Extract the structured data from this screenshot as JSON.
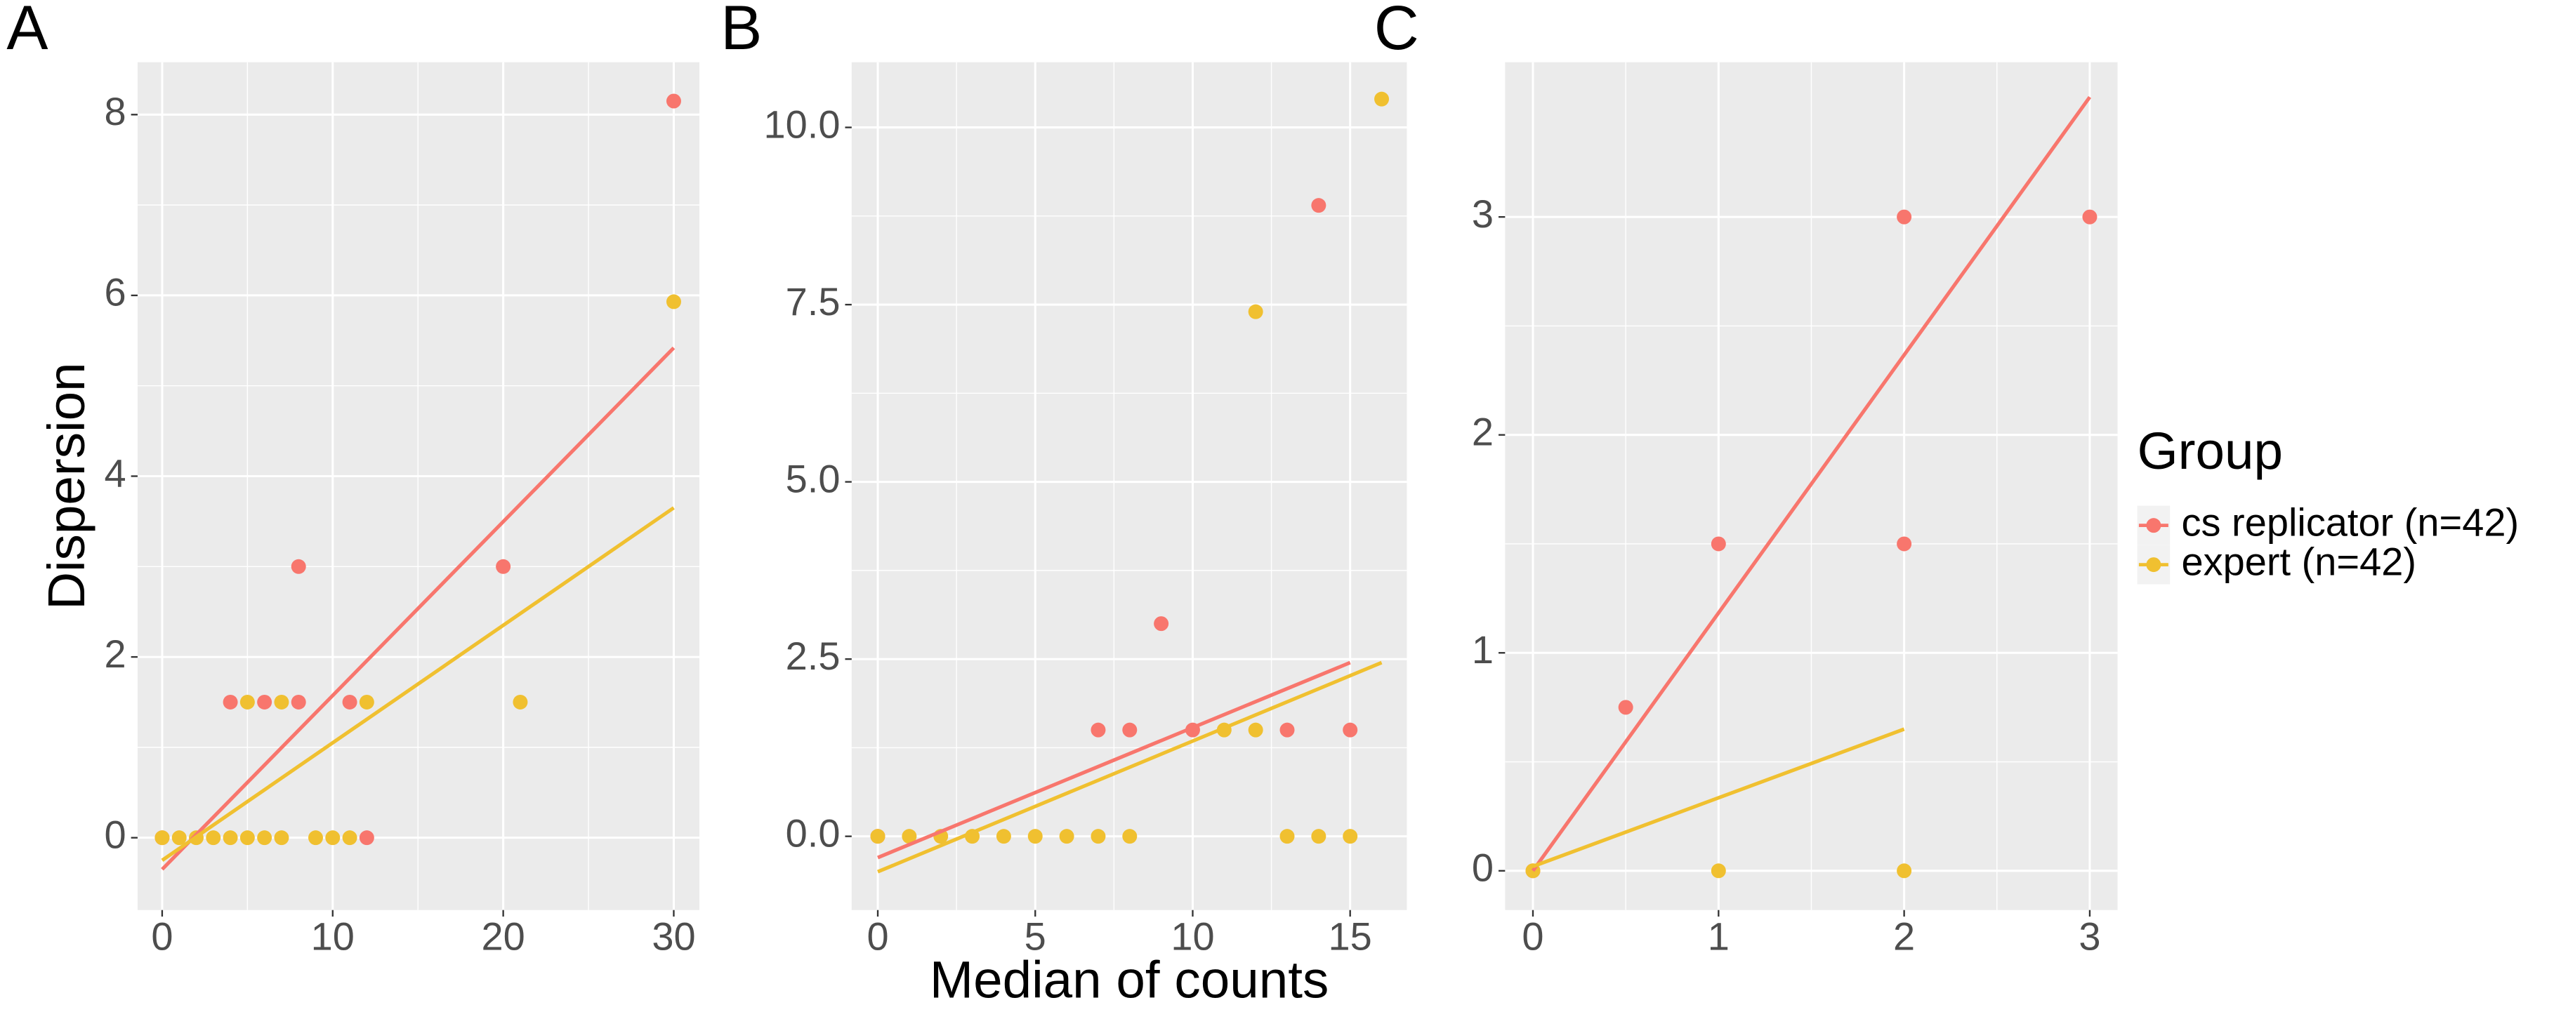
{
  "chart_data": [
    {
      "type": "scatter",
      "tag": "A",
      "ylabel": "Dispersion",
      "legend_title": "Group",
      "xlim": [
        -1.44,
        31.5
      ],
      "ylim": [
        -0.8,
        8.58
      ],
      "xticks": [
        0,
        10,
        20,
        30
      ],
      "yticks": [
        0,
        2,
        4,
        6,
        8
      ],
      "grid": true,
      "series": [
        {
          "name": "cs replicator (n=42)",
          "color": "#F8766D",
          "x": [
            0,
            4,
            6,
            8,
            8,
            11,
            12,
            20,
            30
          ],
          "values": [
            0,
            1.5,
            1.5,
            1.5,
            3,
            1.5,
            0,
            3,
            8.15
          ],
          "fit_x": [
            0,
            30
          ],
          "fit_y": [
            -0.35,
            5.42
          ]
        },
        {
          "name": "expert (n=42)",
          "color": "#F0C030",
          "x": [
            0,
            1,
            2,
            3,
            4,
            5,
            6,
            7,
            5,
            7,
            9,
            10,
            11,
            12,
            21,
            30
          ],
          "values": [
            0,
            0,
            0,
            0,
            0,
            0,
            0,
            0,
            1.5,
            1.5,
            0,
            0,
            0,
            1.5,
            1.5,
            5.93
          ],
          "fit_x": [
            0,
            30
          ],
          "fit_y": [
            -0.25,
            3.65
          ]
        }
      ]
    },
    {
      "type": "scatter",
      "tag": "B",
      "xlabel": "Median of counts",
      "xlim": [
        -0.83,
        16.8
      ],
      "ylim": [
        -1.04,
        10.92
      ],
      "xticks": [
        0,
        5,
        10,
        15
      ],
      "yticks": [
        {
          "value": 0,
          "label": "0.0"
        },
        {
          "value": 2.5,
          "label": "2.5"
        },
        {
          "value": 5,
          "label": "5.0"
        },
        {
          "value": 7.5,
          "label": "7.5"
        },
        {
          "value": 10,
          "label": "10.0"
        }
      ],
      "grid": true,
      "series": [
        {
          "name": "cs replicator (n=42)",
          "color": "#F8766D",
          "x": [
            0,
            7,
            8,
            9,
            10,
            13,
            14,
            15
          ],
          "values": [
            0,
            1.5,
            1.5,
            3,
            1.5,
            1.5,
            8.9,
            1.5
          ],
          "fit_x": [
            0,
            15
          ],
          "fit_y": [
            -0.3,
            2.45
          ]
        },
        {
          "name": "expert (n=42)",
          "color": "#F0C030",
          "x": [
            0,
            1,
            2,
            3,
            4,
            5,
            6,
            7,
            8,
            11,
            12,
            12,
            13,
            14,
            15,
            16
          ],
          "values": [
            0,
            0,
            0,
            0,
            0,
            0,
            0,
            0,
            0,
            1.5,
            1.5,
            7.4,
            0,
            0,
            0,
            10.4
          ],
          "fit_x": [
            0,
            16
          ],
          "fit_y": [
            -0.5,
            2.45
          ]
        }
      ]
    },
    {
      "type": "scatter",
      "tag": "C",
      "xlim": [
        -0.15,
        3.15
      ],
      "ylim": [
        -0.18,
        3.71
      ],
      "xticks": [
        0,
        1,
        2,
        3
      ],
      "yticks": [
        0,
        1,
        2,
        3
      ],
      "grid": true,
      "series": [
        {
          "name": "cs replicator (n=42)",
          "color": "#F8766D",
          "x": [
            0,
            0.5,
            1,
            2,
            2,
            3
          ],
          "values": [
            0,
            0.75,
            1.5,
            3,
            1.5,
            3
          ],
          "fit_x": [
            0,
            3
          ],
          "fit_y": [
            0,
            3.55
          ]
        },
        {
          "name": "expert (n=42)",
          "color": "#F0C030",
          "x": [
            0,
            1,
            2
          ],
          "values": [
            0,
            0,
            0
          ],
          "fit_x": [
            0,
            2
          ],
          "fit_y": [
            0.02,
            0.65
          ]
        }
      ]
    }
  ]
}
